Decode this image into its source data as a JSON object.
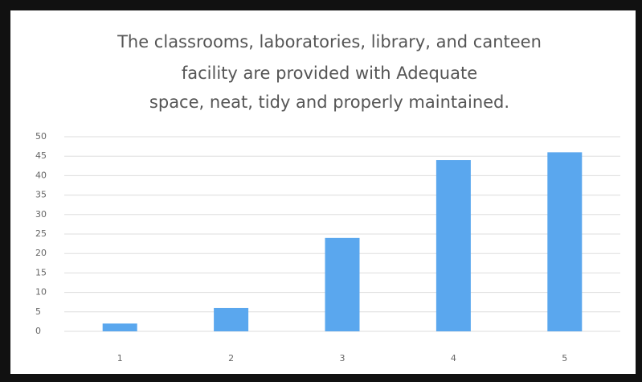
{
  "chart_data": {
    "type": "bar",
    "title": [
      "The classrooms, laboratories, library, and canteen",
      "facility are provided with Adequate",
      "space, neat, tidy and properly maintained."
    ],
    "categories": [
      "1",
      "2",
      "3",
      "4",
      "5"
    ],
    "values": [
      2,
      6,
      24,
      44,
      46
    ],
    "color": "#5aa7ee",
    "ylim": [
      0,
      50
    ],
    "yticks": [
      0,
      5,
      10,
      15,
      20,
      25,
      30,
      35,
      40,
      45,
      50
    ],
    "grid": true
  }
}
